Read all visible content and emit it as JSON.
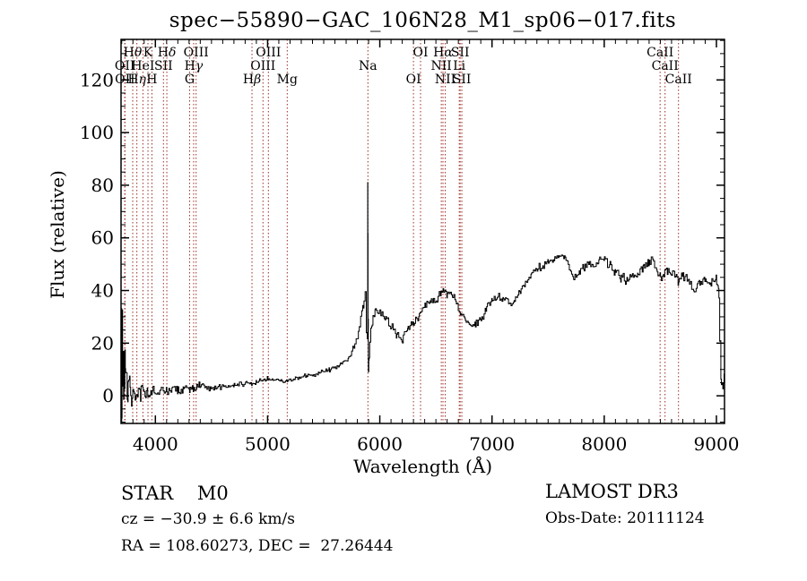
{
  "title": "spec−55890−GAC_106N28_M1_sp06−017.fits",
  "annotations": {
    "class_label": "STAR    M0",
    "cz": "cz = −30.9 ± 6.6 km/s",
    "radec": "RA = 108.60273, DEC =  27.26444",
    "survey": "LAMOST DR3",
    "obs_date": "Obs-Date: 20111124"
  },
  "chart_data": {
    "type": "line",
    "title": "spec−55890−GAC_106N28_M1_sp06−017.fits",
    "xlabel": "Wavelength (Å)",
    "ylabel": "Flux (relative)",
    "xlim": [
      3694,
      9072
    ],
    "ylim": [
      -10.5,
      135.4
    ],
    "x_ticks": [
      4000,
      5000,
      6000,
      7000,
      8000,
      9000
    ],
    "x_minor_step": 100,
    "y_ticks": [
      0,
      20,
      40,
      60,
      80,
      100,
      120
    ],
    "y_minor_step": 5,
    "grid": false,
    "legend": "none",
    "line_color": "#000000",
    "marker_line_color": "#9b2d24",
    "line_markers": [
      {
        "label": "Hθ",
        "wavelength": 3798,
        "row": 1
      },
      {
        "label": "K",
        "wavelength": 3934,
        "row": 1
      },
      {
        "label": "Hδ",
        "wavelength": 4102,
        "row": 1
      },
      {
        "label": "OIII",
        "wavelength": 4363,
        "row": 1
      },
      {
        "label": "OIII",
        "wavelength": 5007,
        "row": 1
      },
      {
        "label": "OI",
        "wavelength": 6363,
        "row": 1
      },
      {
        "label": "Hα",
        "wavelength": 6563,
        "row": 1
      },
      {
        "label": "SII",
        "wavelength": 6716,
        "row": 1
      },
      {
        "label": "CaII",
        "wavelength": 8498,
        "row": 1
      },
      {
        "label": "OII",
        "wavelength": 3727,
        "row": 2
      },
      {
        "label": "HeI",
        "wavelength": 3889,
        "row": 2
      },
      {
        "label": "SII",
        "wavelength": 4072,
        "row": 2
      },
      {
        "label": "Hγ",
        "wavelength": 4341,
        "row": 2
      },
      {
        "label": "OIII",
        "wavelength": 4959,
        "row": 2
      },
      {
        "label": "Na",
        "wavelength": 5894,
        "row": 2
      },
      {
        "label": "NII",
        "wavelength": 6548,
        "row": 2
      },
      {
        "label": "Li",
        "wavelength": 6708,
        "row": 2
      },
      {
        "label": "CaII",
        "wavelength": 8542,
        "row": 2
      },
      {
        "label": "OII",
        "wavelength": 3729,
        "row": 3
      },
      {
        "label": "Hη",
        "wavelength": 3835,
        "row": 3
      },
      {
        "label": "H",
        "wavelength": 3969,
        "row": 3
      },
      {
        "label": "G",
        "wavelength": 4305,
        "row": 3
      },
      {
        "label": "Hβ",
        "wavelength": 4861,
        "row": 3
      },
      {
        "label": "Mg",
        "wavelength": 5175,
        "row": 3
      },
      {
        "label": "OI",
        "wavelength": 6300,
        "row": 3
      },
      {
        "label": "NII",
        "wavelength": 6583,
        "row": 3
      },
      {
        "label": "SII",
        "wavelength": 6731,
        "row": 3
      },
      {
        "label": "CaII",
        "wavelength": 8662,
        "row": 3
      }
    ],
    "series": [
      {
        "name": "spectrum",
        "x": [
          3694,
          3698,
          3702,
          3706,
          3710,
          3714,
          3718,
          3722,
          3726,
          3730,
          3736,
          3744,
          3752,
          3760,
          3775,
          3790,
          3810,
          3830,
          3850,
          3870,
          3890,
          3910,
          3930,
          3950,
          3970,
          4000,
          4050,
          4100,
          4150,
          4200,
          4250,
          4305,
          4340,
          4400,
          4500,
          4600,
          4700,
          4800,
          4861,
          4900,
          5000,
          5100,
          5175,
          5250,
          5350,
          5450,
          5550,
          5650,
          5720,
          5780,
          5820,
          5850,
          5875,
          5886,
          5891,
          5893,
          5896,
          5900,
          5905,
          5915,
          5930,
          5960,
          6000,
          6050,
          6100,
          6150,
          6200,
          6250,
          6300,
          6350,
          6400,
          6450,
          6500,
          6550,
          6563,
          6600,
          6650,
          6680,
          6720,
          6760,
          6800,
          6850,
          6900,
          6950,
          7000,
          7050,
          7100,
          7150,
          7200,
          7250,
          7300,
          7350,
          7400,
          7450,
          7500,
          7550,
          7600,
          7650,
          7700,
          7730,
          7780,
          7820,
          7860,
          7900,
          7950,
          8000,
          8050,
          8100,
          8150,
          8200,
          8250,
          8300,
          8350,
          8400,
          8430,
          8470,
          8500,
          8530,
          8560,
          8600,
          8640,
          8662,
          8700,
          8750,
          8800,
          8850,
          8900,
          8950,
          9000,
          9020,
          9035,
          9045,
          9060,
          9072
        ],
        "y": [
          8,
          30,
          -3,
          36,
          4,
          20,
          -5,
          14,
          -2,
          12,
          2,
          9,
          0,
          7,
          5,
          -2,
          4,
          0,
          2,
          1,
          3,
          0,
          1.5,
          0.5,
          2,
          1,
          2.5,
          1.5,
          2.5,
          2,
          3,
          3.5,
          3,
          3.5,
          3,
          3.5,
          4,
          4.5,
          4.5,
          5,
          6.5,
          6,
          5.5,
          7,
          7.5,
          8.5,
          10,
          12,
          14,
          19,
          25,
          33,
          39,
          24,
          22,
          79,
          30,
          8,
          14,
          20,
          28,
          32,
          32,
          30,
          27,
          24,
          21,
          26,
          28,
          30,
          34,
          36,
          36,
          39,
          41,
          39,
          39,
          36,
          31,
          29,
          28,
          27,
          29,
          33,
          36,
          38,
          37,
          35,
          36,
          40,
          43,
          46,
          48,
          49,
          51,
          52,
          54,
          53,
          48,
          44,
          47,
          49,
          50,
          49,
          51,
          52,
          50,
          47,
          45,
          44,
          45,
          46,
          49,
          51,
          52,
          48,
          45,
          46,
          48,
          47,
          45,
          43,
          46,
          44,
          40,
          42,
          44,
          43,
          44,
          42,
          20,
          5,
          3,
          8
        ]
      }
    ],
    "noise_profile": [
      {
        "max_wavelength": 3768,
        "amplitude": 8.0
      },
      {
        "max_wavelength": 3900,
        "amplitude": 3.0
      },
      {
        "max_wavelength": 4400,
        "amplitude": 2.0
      },
      {
        "max_wavelength": 5300,
        "amplitude": 1.1
      },
      {
        "max_wavelength": 5700,
        "amplitude": 1.0
      },
      {
        "max_wavelength": 5880,
        "amplitude": 1.6
      },
      {
        "max_wavelength": 5960,
        "amplitude": 2.5
      },
      {
        "max_wavelength": 6300,
        "amplitude": 2.0
      },
      {
        "max_wavelength": 7000,
        "amplitude": 1.8
      },
      {
        "max_wavelength": 8000,
        "amplitude": 1.7
      },
      {
        "max_wavelength": 9030,
        "amplitude": 1.9
      },
      {
        "max_wavelength": 9100,
        "amplitude": 1.2
      }
    ]
  }
}
